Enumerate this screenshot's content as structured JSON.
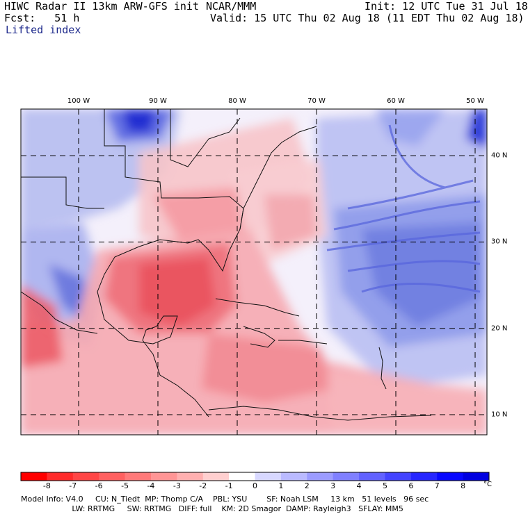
{
  "header": {
    "title": "HIWC Radar II 13km ARW-GFS init",
    "org": "NCAR/MMM",
    "init": "Init: 12 UTC Tue 31 Jul 18",
    "fcst": "Fcst:   51 h",
    "valid": "Valid: 15 UTC Thu 02 Aug 18 (11 EDT Thu 02 Aug 18)",
    "field": "Lifted index"
  },
  "longitudes": [
    {
      "label": "100 W",
      "lon": -100
    },
    {
      "label": "90 W",
      "lon": -90
    },
    {
      "label": "80 W",
      "lon": -80
    },
    {
      "label": "70 W",
      "lon": -70
    },
    {
      "label": "60 W",
      "lon": -60
    },
    {
      "label": "50 W",
      "lon": -50
    }
  ],
  "latitudes": [
    {
      "label": "40 N",
      "lat": 40
    },
    {
      "label": "30 N",
      "lat": 30
    },
    {
      "label": "20 N",
      "lat": 20
    },
    {
      "label": "10 N",
      "lat": 10
    }
  ],
  "colorbar": {
    "unit": "°C",
    "labels": [
      "-8",
      "-7",
      "-6",
      "-5",
      "-4",
      "-3",
      "-2",
      "-1",
      "0",
      "1",
      "2",
      "3",
      "4",
      "5",
      "6",
      "7",
      "8"
    ],
    "colors": [
      "#ff0000",
      "#ff2b2b",
      "#ff4646",
      "#ff6060",
      "#ff7a7a",
      "#ff9595",
      "#ffb0b0",
      "#ffcfcf",
      "#ffffff",
      "#d8d8ff",
      "#babaff",
      "#9c9cff",
      "#8080ff",
      "#6262ff",
      "#4444ff",
      "#2626ff",
      "#0808ff",
      "#0000e0"
    ]
  },
  "model_info": {
    "line1": "Model Info: V4.0     CU: N_Tiedt  MP: Thomp C/A    PBL: YSU        SF: Noah LSM     13 km   51 levels   96 sec",
    "line2": "                     LW: RRTMG     SW: RRTMG   DIFF: full    KM: 2D Smagor  DAMP: Rayleigh3   SFLAY: MM5"
  }
}
